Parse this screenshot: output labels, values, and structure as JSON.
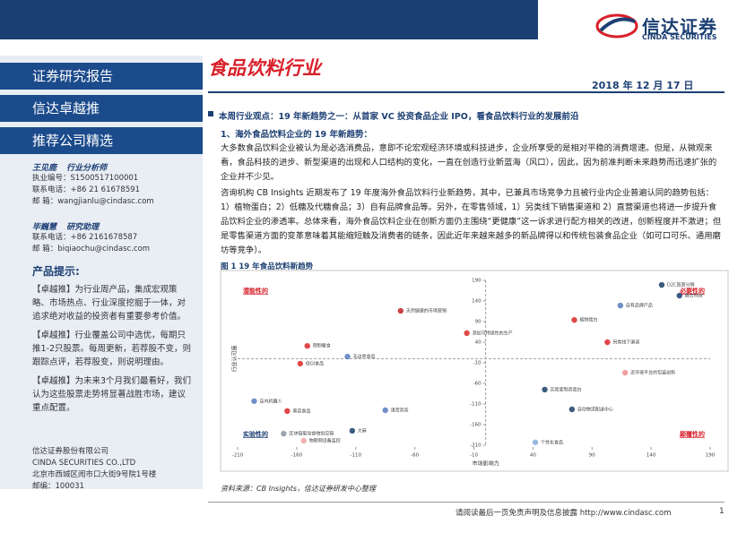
{
  "header": {
    "logo_cn": "信达证券",
    "logo_en": "CINDA SECURITIES"
  },
  "sidebar": {
    "report_type": "证券研究报告",
    "column": "信达卓越推",
    "subtitle": "推荐公司精选",
    "analysts": [
      {
        "name": "王见鹿",
        "role": "行业分析师",
        "lines": [
          "执业编号：S1500517100001",
          "联系电话：+86 21 61678591",
          "邮    箱：wangjianlu@cindasc.com"
        ]
      },
      {
        "name": "毕巍慧",
        "role": "研究助理",
        "lines": [
          "联系电话：+86 2161678587",
          "邮    箱：biqiaochu@cindasc.com"
        ]
      }
    ],
    "tips_title": "产品提示:",
    "tips": [
      "【卓越推】为行业周产品，集成宏观策略、市场热点、行业深度挖掘于一体，对追求绝对收益的投资者有重要参考价值。",
      "【卓越推】行业覆盖公司中选优，每期只推1-2只股票。每周更新，若荐股不变，则跟踪点评，若荐股变，则说明理由。",
      "【卓越推】为未来3个月我们最看好，我们认为这些股票走势将显著战胜市场，建议重点配置。"
    ],
    "company": [
      "信达证券股份有限公司",
      "CINDA SECURITIES CO.,LTD",
      "北京市西城区闹市口大街9号院1号楼",
      "邮编：100031"
    ]
  },
  "main": {
    "title": "食品饮料行业",
    "date": "2018 年 12 月 17 日",
    "headline": "本周行业观点：19 年新趋势之一：从首家 VC 投资食品企业 IPO，看食品饮料行业的发展前沿",
    "section": "1、海外食品饮料企业的 19 年新趋势：",
    "paragraphs": [
      "大多数食品饮料企业被认为是必选消费品，意即不论宏观经济环境或科技进步，企业所享受的是相对平稳的消费增速。但是，从微观来看，食品科技的进步、新型渠道的出现和人口结构的变化，一直在创造行业新蓝海（风口），因此，因为前准判断未来趋势而迅速扩张的企业并不少见。",
      "咨询机构 CB Insights 近期发布了 19 年度海外食品饮料行业新趋势，其中，已兼具市场竞争力且被行业内企业普遍认同的趋势包括：1）植物蛋白；2）低糖及代糖食品；3）自有品牌食品等。另外，在零售领域，1）另类线下销售渠道和 2）直营渠道也将进一步提升食品饮料企业的渗透率。总体来看，海外食品饮料企业在创新方面仍主围绕“更健康”这一诉求进行配方相关的改进，创新程度并不激进；但是零售渠道方面的变革意味着其能缩短触及消费者的链条，因此近年来越来越多的新品牌得以和传统包装食品企业（如可口可乐、通用磨坊等竞争）。"
    ],
    "figure_title": "图 1 19 年食品饮料新趋势",
    "source": "资料来源：CB Insights，信达证券研发中心整理"
  },
  "chart_data": {
    "type": "scatter",
    "x_label": "市场影响力",
    "y_label": "行业认可度",
    "xlim": [
      -210,
      190
    ],
    "ylim": [
      -210,
      190
    ],
    "xticks": [
      -210,
      -160,
      -110,
      -60,
      -10,
      40,
      90,
      140,
      190
    ],
    "yticks": [
      190,
      140,
      90,
      40,
      -10,
      -60,
      -110,
      -160,
      -210
    ],
    "quadrants": [
      "潜能性的",
      "必要性的",
      "实验性的",
      "颠覆性的"
    ],
    "points": [
      {
        "label": "D2C直营分销",
        "x": 149,
        "y": 179,
        "color": "#3d5a80"
      },
      {
        "label": "融合科技",
        "x": 164,
        "y": 153,
        "color": "#3d5a80"
      },
      {
        "label": "自有品牌产品",
        "x": 114,
        "y": 129,
        "color": "#6f8fc8"
      },
      {
        "label": "天然健康的市场营销",
        "x": -72,
        "y": 116,
        "color": "#c94040"
      },
      {
        "label": "植物蛋白",
        "x": 75,
        "y": 94,
        "color": "#e04848"
      },
      {
        "label": "添加可持续性的生产",
        "x": -16,
        "y": 62,
        "color": "#e04848"
      },
      {
        "label": "另类线下渠道",
        "x": 103,
        "y": 40,
        "color": "#e04848"
      },
      {
        "label": "预制餐食",
        "x": -151,
        "y": 31,
        "color": "#e04848"
      },
      {
        "label": "无边界食品",
        "x": -117,
        "y": 5,
        "color": "#6f8fc8"
      },
      {
        "label": "低GI食品",
        "x": -157,
        "y": -12,
        "color": "#e04848"
      },
      {
        "label": "近环境平台的包装创新",
        "x": 118,
        "y": -34,
        "color": "#f0a0a0"
      },
      {
        "label": "实验室制造蛋白",
        "x": 50,
        "y": -75,
        "color": "#3d5a80"
      },
      {
        "label": "店内机器人",
        "x": -196,
        "y": -103,
        "color": "#6f8fc8"
      },
      {
        "label": "自动物流配送中心",
        "x": 73,
        "y": -123,
        "color": "#3d5a80"
      },
      {
        "label": "语音商务",
        "x": -85,
        "y": -125,
        "color": "#6f8fc8"
      },
      {
        "label": "美容食品",
        "x": -168,
        "y": -127,
        "color": "#e04848"
      },
      {
        "label": "大麻",
        "x": -113,
        "y": -175,
        "color": "#3d5a80"
      },
      {
        "label": "区块链驱动食物供应链",
        "x": -171,
        "y": -182,
        "color": "#9aa4ae"
      },
      {
        "label": "物联网设备监控",
        "x": -154,
        "y": -199,
        "color": "#f0b0b0"
      },
      {
        "label": "个性化食品",
        "x": 42,
        "y": -203,
        "color": "#9bb8e0"
      }
    ]
  },
  "footer": {
    "disclaimer": "请阅读最后一页免责声明及信息披露 http://www.cindasc.com",
    "page": "1"
  }
}
